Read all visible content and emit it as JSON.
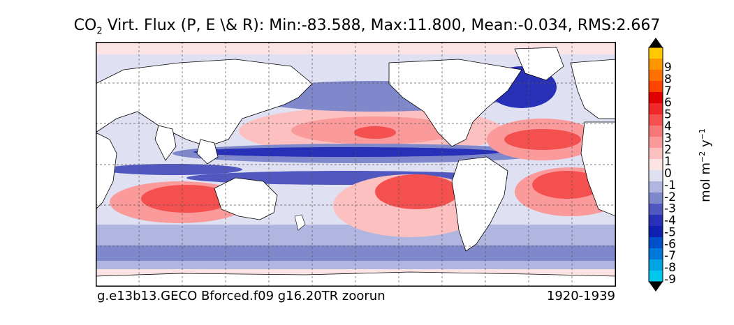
{
  "title": {
    "prefix": "CO",
    "subscript": "2",
    "rest": " Virt. Flux (P, E \\& R): Min:-83.588, Max:11.800, Mean:-0.034, RMS:2.667"
  },
  "footer": {
    "left": "g.e13b13.GECO Bforced.f09 g16.20TR zoorun",
    "right": "1920-1939"
  },
  "colorbar": {
    "unit_parts": [
      "mol m",
      "−2",
      " y",
      "−1"
    ],
    "tick_labels": [
      "9",
      "8",
      "7",
      "6",
      "5",
      "4",
      "3",
      "2",
      "1",
      "0",
      "-1",
      "-2",
      "-3",
      "-4",
      "-5",
      "-6",
      "-7",
      "-8",
      "-9"
    ],
    "colors": [
      "#00e5ee",
      "#00c8ec",
      "#00a4e2",
      "#0078d8",
      "#0050cc",
      "#1020b0",
      "#2830b8",
      "#5058c0",
      "#8088cc",
      "#b0b6e0",
      "#dfe1f3",
      "#fde4e4",
      "#fdc0c0",
      "#fa9a9a",
      "#f77878",
      "#f45050",
      "#f02828",
      "#e00000",
      "#ff4400",
      "#ff7000",
      "#ff9600",
      "#ffc800",
      "#ffff00"
    ]
  },
  "map": {
    "projection": "cylindrical equidistant",
    "gridlines": "dashed"
  }
}
